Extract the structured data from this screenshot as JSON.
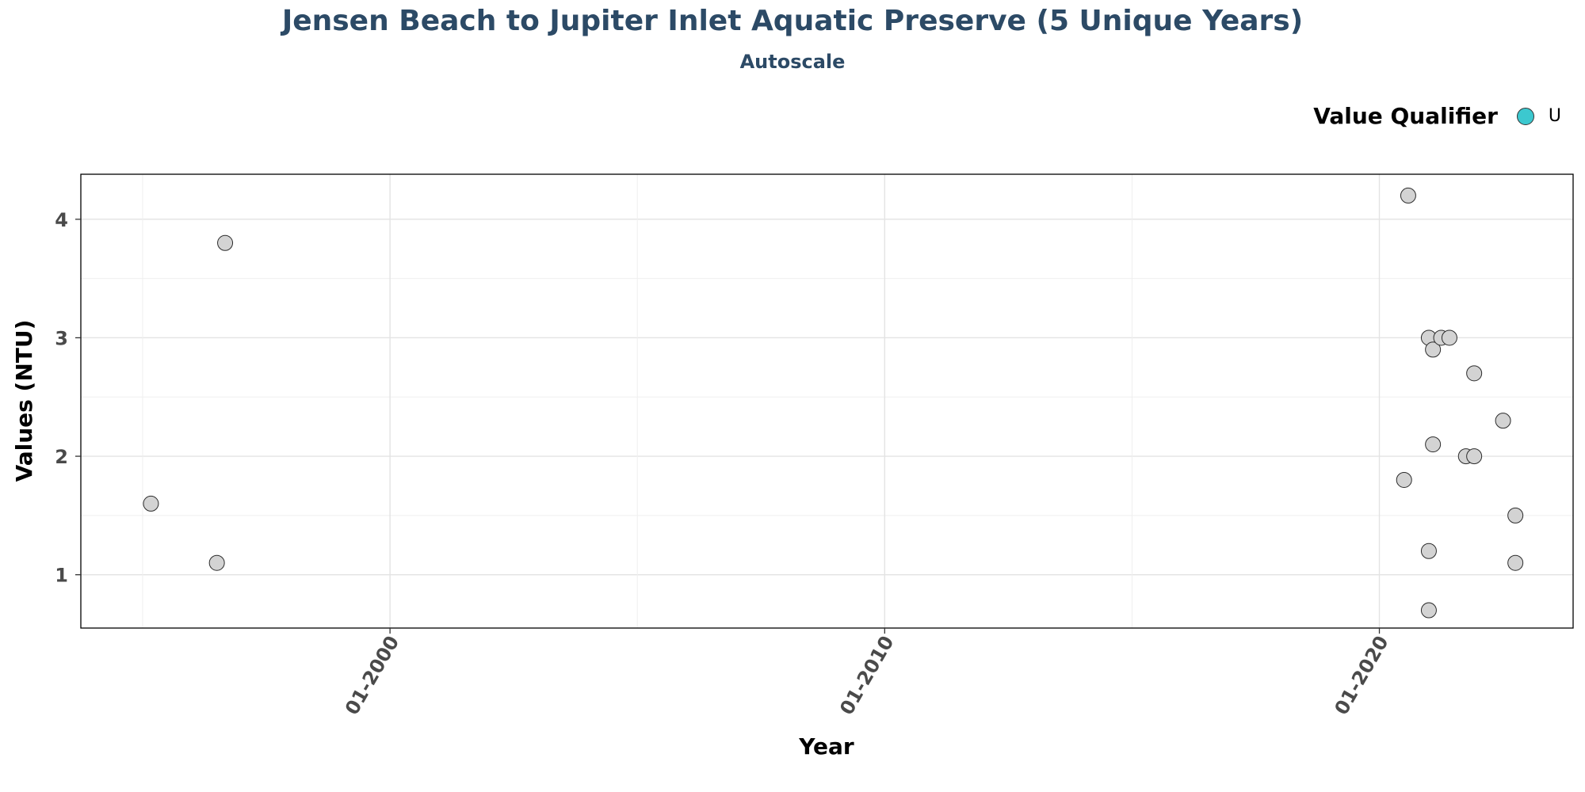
{
  "chart_data": {
    "type": "scatter",
    "title": "Jensen Beach to Jupiter Inlet Aquatic Preserve (5 Unique Years)",
    "subtitle": "Autoscale",
    "xlabel": "Year",
    "ylabel": "Values (NTU)",
    "x_ticks": [
      "01-2000",
      "01-2010",
      "01-2020"
    ],
    "y_ticks": [
      1,
      2,
      3,
      4
    ],
    "xlim": [
      "1993-10",
      "2023-12"
    ],
    "ylim": [
      0.55,
      4.38
    ],
    "grid": true,
    "legend": {
      "title": "Value Qualifier",
      "placement": "top-right",
      "items": [
        {
          "label": "U",
          "color": "#3cc8cf"
        }
      ]
    },
    "point_color": "#d3d3d3",
    "points": [
      {
        "x": "1995-03",
        "y": 1.6
      },
      {
        "x": "1996-07",
        "y": 1.1
      },
      {
        "x": "1996-09",
        "y": 3.8
      },
      {
        "x": "2020-08",
        "y": 4.2
      },
      {
        "x": "2020-07",
        "y": 1.8
      },
      {
        "x": "2021-01",
        "y": 3.0
      },
      {
        "x": "2021-01",
        "y": 1.2
      },
      {
        "x": "2021-01",
        "y": 0.7
      },
      {
        "x": "2021-02",
        "y": 2.9
      },
      {
        "x": "2021-02",
        "y": 2.1
      },
      {
        "x": "2021-04",
        "y": 3.0
      },
      {
        "x": "2021-06",
        "y": 3.0
      },
      {
        "x": "2021-10",
        "y": 2.0
      },
      {
        "x": "2021-12",
        "y": 2.7
      },
      {
        "x": "2021-12",
        "y": 2.0
      },
      {
        "x": "2022-07",
        "y": 2.3
      },
      {
        "x": "2022-10",
        "y": 1.5
      },
      {
        "x": "2022-10",
        "y": 1.1
      }
    ]
  }
}
